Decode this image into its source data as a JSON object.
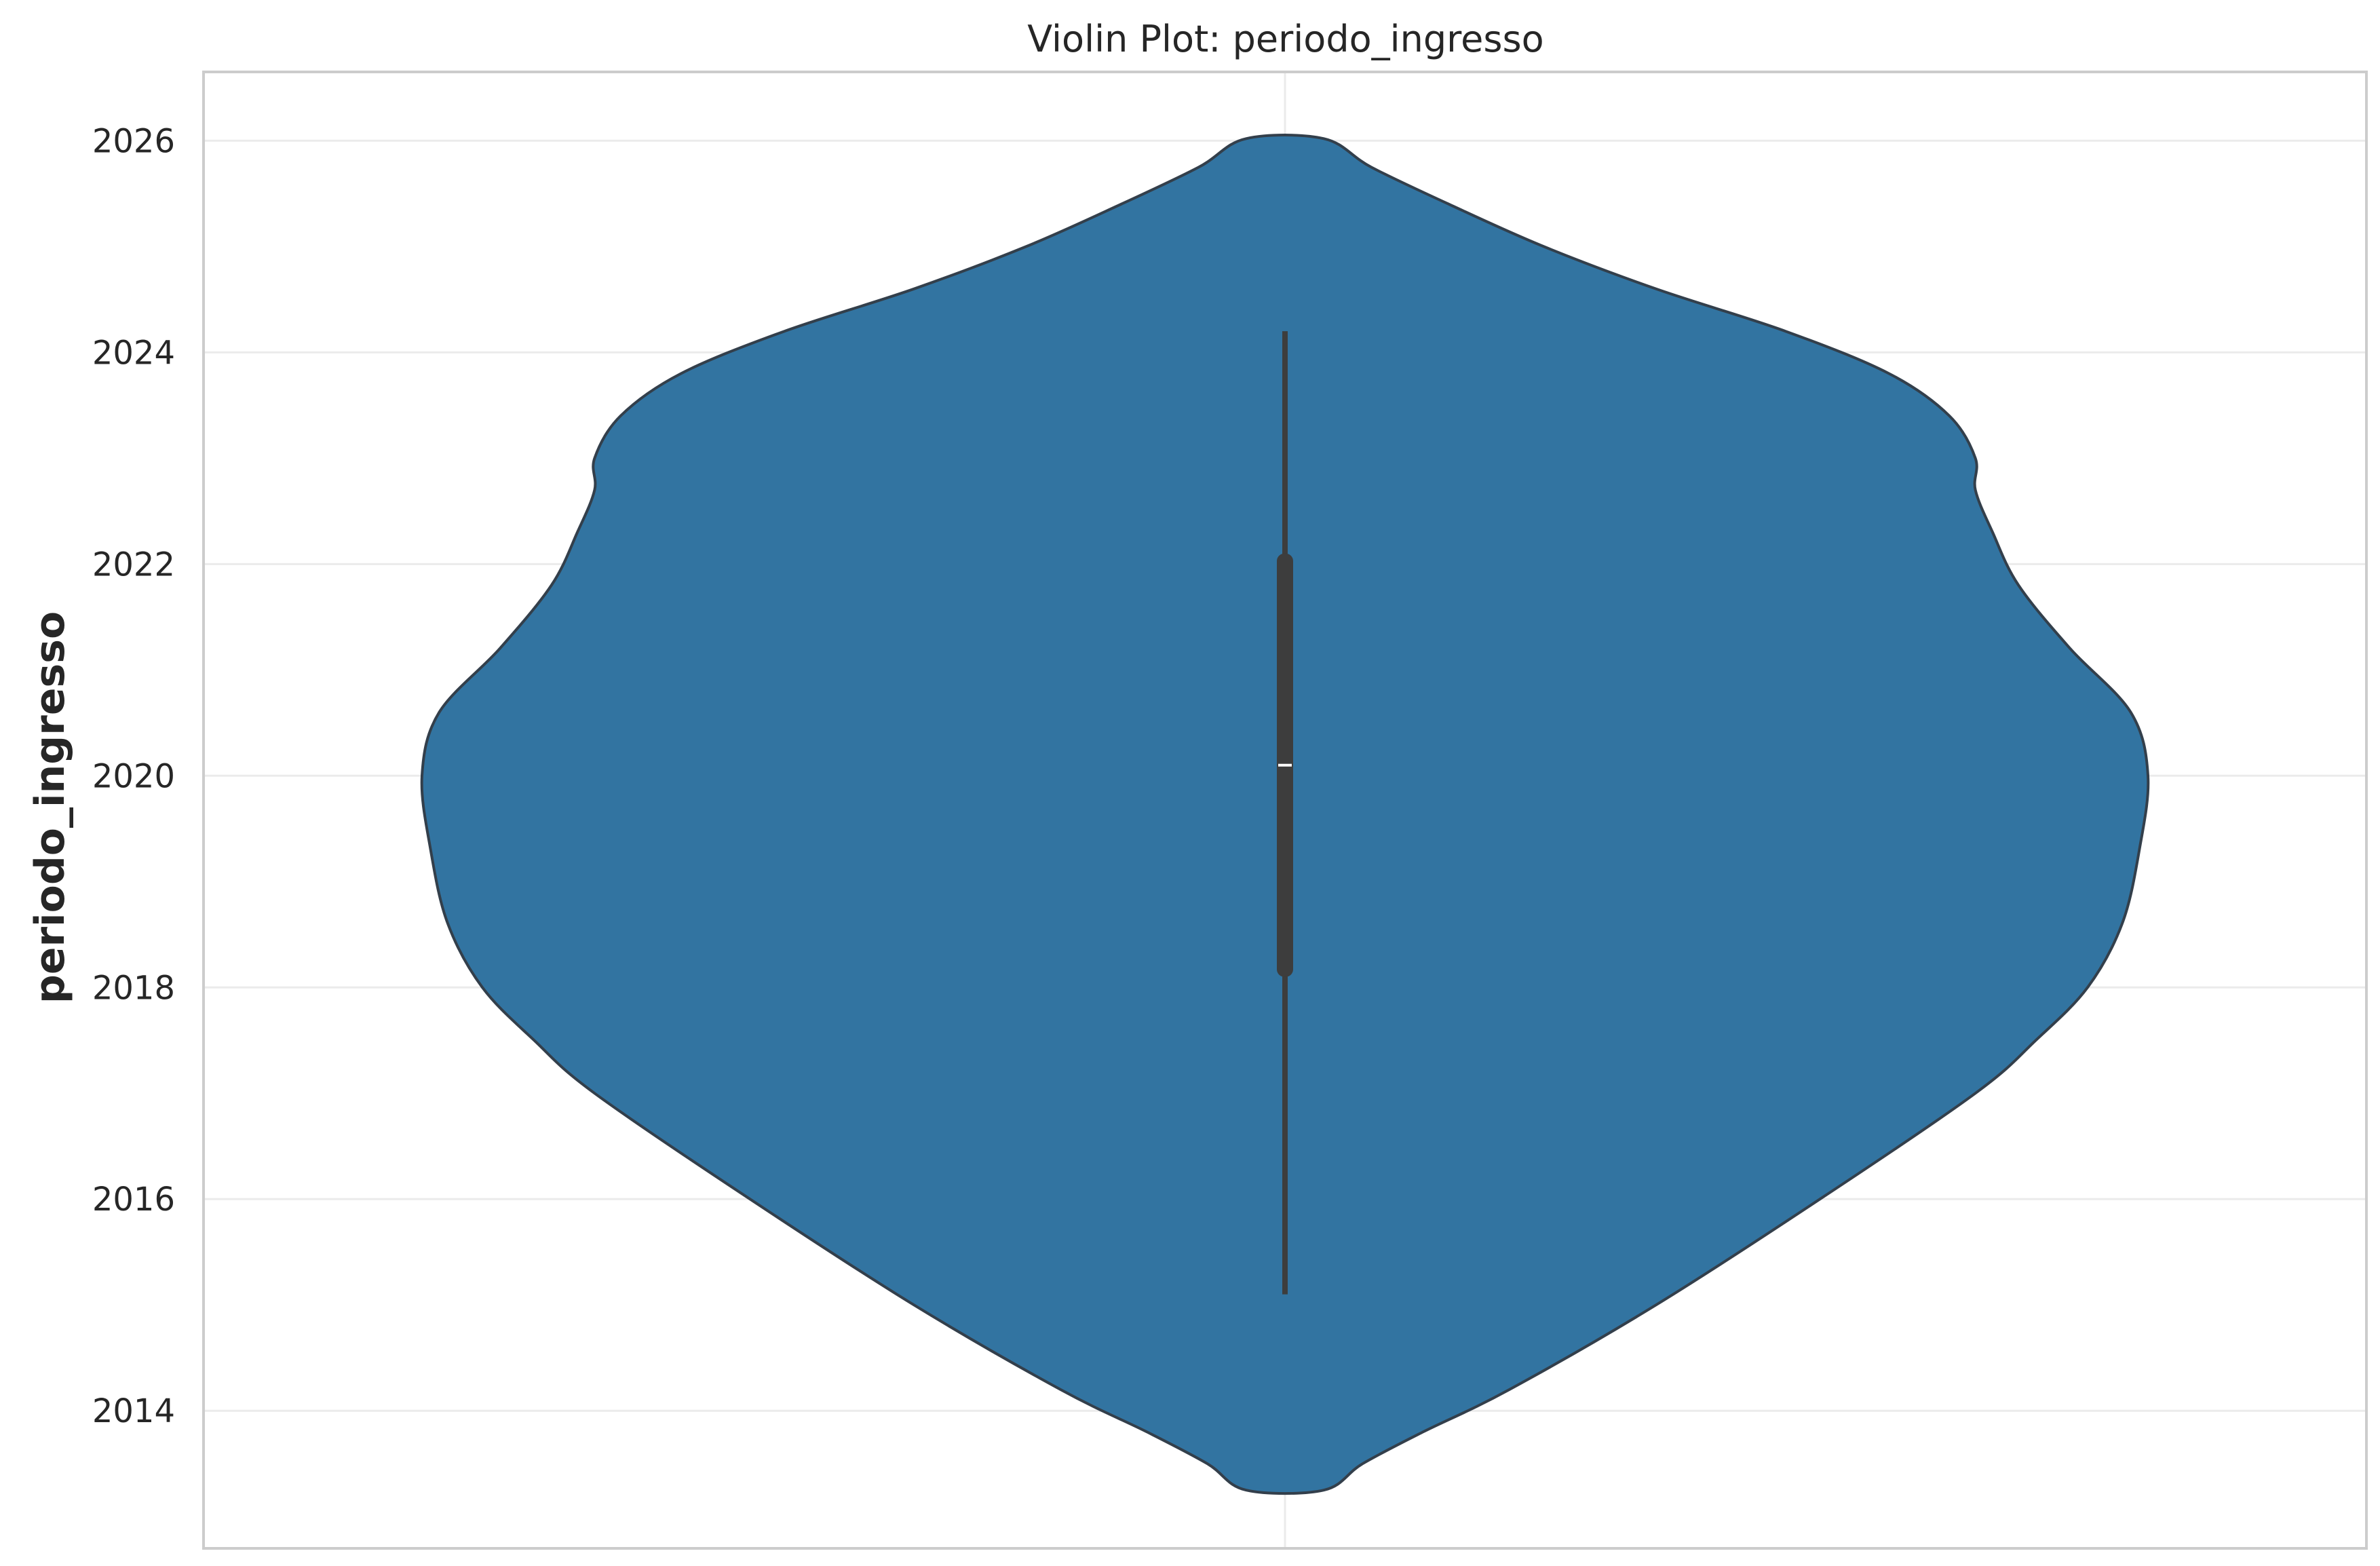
{
  "chart_data": {
    "type": "violin",
    "title": "Violin Plot: periodo_ingresso",
    "xlabel": "",
    "ylabel": "periodo_ingresso",
    "ylim": [
      2012.7,
      2026.65
    ],
    "yticks": [
      2014,
      2016,
      2018,
      2020,
      2022,
      2024,
      2026
    ],
    "ytick_labels": [
      "2014",
      "2016",
      "2018",
      "2020",
      "2022",
      "2024",
      "2026"
    ],
    "grid": true,
    "violin": {
      "fill_color": "#3274a1",
      "edge_color": "#333f4b",
      "min": 2013.25,
      "max": 2026.02,
      "density_profile": [
        {
          "y": 2013.25,
          "w": 0.045
        },
        {
          "y": 2013.5,
          "w": 0.09
        },
        {
          "y": 2013.8,
          "w": 0.16
        },
        {
          "y": 2014.2,
          "w": 0.26
        },
        {
          "y": 2015.0,
          "w": 0.43
        },
        {
          "y": 2016.0,
          "w": 0.62
        },
        {
          "y": 2017.0,
          "w": 0.8
        },
        {
          "y": 2017.5,
          "w": 0.87
        },
        {
          "y": 2018.0,
          "w": 0.93
        },
        {
          "y": 2018.6,
          "w": 0.97
        },
        {
          "y": 2019.3,
          "w": 0.99
        },
        {
          "y": 2020.0,
          "w": 1.0
        },
        {
          "y": 2020.6,
          "w": 0.98
        },
        {
          "y": 2021.2,
          "w": 0.91
        },
        {
          "y": 2021.8,
          "w": 0.85
        },
        {
          "y": 2022.3,
          "w": 0.82
        },
        {
          "y": 2022.7,
          "w": 0.8
        },
        {
          "y": 2023.0,
          "w": 0.8
        },
        {
          "y": 2023.4,
          "w": 0.77
        },
        {
          "y": 2023.8,
          "w": 0.7
        },
        {
          "y": 2024.2,
          "w": 0.58
        },
        {
          "y": 2024.6,
          "w": 0.43
        },
        {
          "y": 2025.0,
          "w": 0.3
        },
        {
          "y": 2025.4,
          "w": 0.19
        },
        {
          "y": 2025.75,
          "w": 0.1
        },
        {
          "y": 2026.02,
          "w": 0.045
        }
      ],
      "whisker_low": 2015.1,
      "q1": 2018.1,
      "median": 2020.1,
      "q3": 2022.1,
      "whisker_high": 2024.2
    }
  }
}
